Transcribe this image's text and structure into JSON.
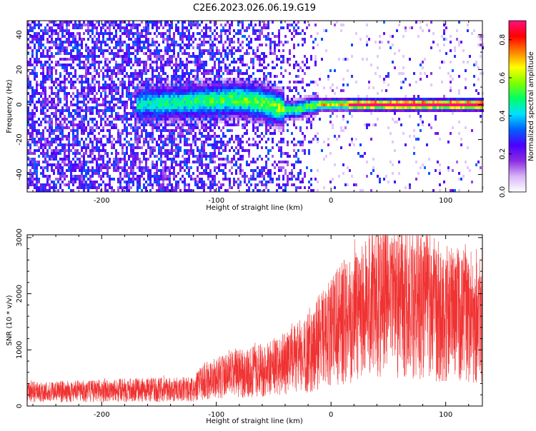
{
  "title": "C2E6.2023.026.06.19.G19",
  "chart_data": [
    {
      "type": "heatmap",
      "xlabel": "Height of straight line (km)",
      "ylabel": "Frequency (Hz)",
      "xlim": [
        -265,
        132
      ],
      "ylim": [
        -50,
        48
      ],
      "xticks": [
        -200,
        -100,
        0,
        100
      ],
      "yticks": [
        -40,
        -20,
        0,
        20,
        40
      ],
      "colorbar": {
        "label": "Normalized spectral amplitude",
        "range": [
          0.0,
          0.9
        ],
        "ticks": [
          0.0,
          0.2,
          0.4,
          0.6,
          0.8
        ],
        "colors": [
          "#ffffff",
          "#d8b4f8",
          "#8a2be2",
          "#4b00ff",
          "#0060ff",
          "#00e0ff",
          "#00ff66",
          "#7fff00",
          "#ffff00",
          "#ff8000",
          "#ff0000",
          "#ff1080"
        ]
      },
      "ridge": {
        "description_points_x": [
          -170,
          -110,
          -80,
          -60,
          -40,
          -30,
          -20,
          -10,
          0,
          20,
          60,
          100,
          132
        ],
        "peak_frequency_hz": [
          0,
          2,
          3,
          1,
          -3,
          -3,
          -1,
          0,
          0,
          0,
          0,
          0,
          0
        ]
      }
    },
    {
      "type": "line",
      "xlabel": "Height of straight line (km)",
      "ylabel": "SNR (10 * v/v)",
      "xlim": [
        -265,
        132
      ],
      "ylim": [
        0,
        3050
      ],
      "xticks": [
        -200,
        -100,
        0,
        100
      ],
      "yticks": [
        0,
        1000,
        2000,
        3000
      ],
      "color": "#f03232",
      "series": [
        {
          "name": "SNR",
          "x": [
            -265,
            -220,
            -180,
            -150,
            -120,
            -110,
            -90,
            -70,
            -50,
            -35,
            -20,
            -10,
            0,
            10,
            20,
            30,
            40,
            60,
            80,
            100,
            120,
            132
          ],
          "values": [
            250,
            260,
            280,
            290,
            300,
            450,
            550,
            600,
            700,
            800,
            950,
            1150,
            1300,
            1500,
            1700,
            1850,
            1950,
            1900,
            1800,
            1650,
            1650,
            1650
          ]
        }
      ]
    }
  ]
}
